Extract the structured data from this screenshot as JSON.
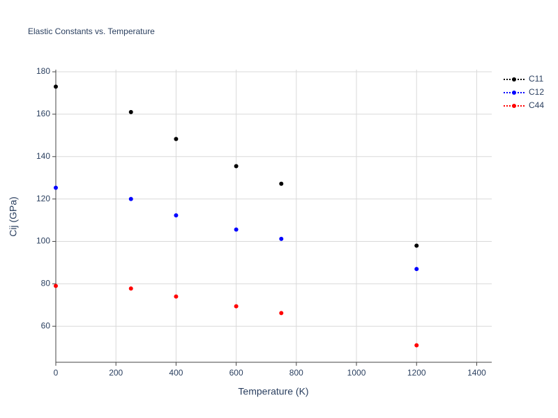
{
  "chart_data": {
    "type": "scatter",
    "title": "Elastic Constants vs. Temperature",
    "x_label": "Temperature (K)",
    "y_label": "Cij (GPa)",
    "x": [
      0,
      250,
      400,
      600,
      750,
      1200
    ],
    "series": [
      {
        "name": "C11",
        "color": "#000000",
        "values": [
          173,
          161,
          148.3,
          135.5,
          127.2,
          98
        ]
      },
      {
        "name": "C12",
        "color": "#0000ff",
        "values": [
          125.3,
          120,
          112.3,
          105.6,
          101.2,
          87
        ]
      },
      {
        "name": "C44",
        "color": "#ff0000",
        "values": [
          79,
          77.8,
          74,
          69.4,
          66.2,
          51
        ]
      }
    ],
    "xlim": [
      0,
      1450
    ],
    "ylim": [
      43,
      181
    ],
    "xticks": [
      0,
      200,
      400,
      600,
      800,
      1000,
      1200,
      1400
    ],
    "yticks": [
      60,
      80,
      100,
      120,
      140,
      160,
      180
    ],
    "grid": true,
    "legend": "top-right"
  }
}
